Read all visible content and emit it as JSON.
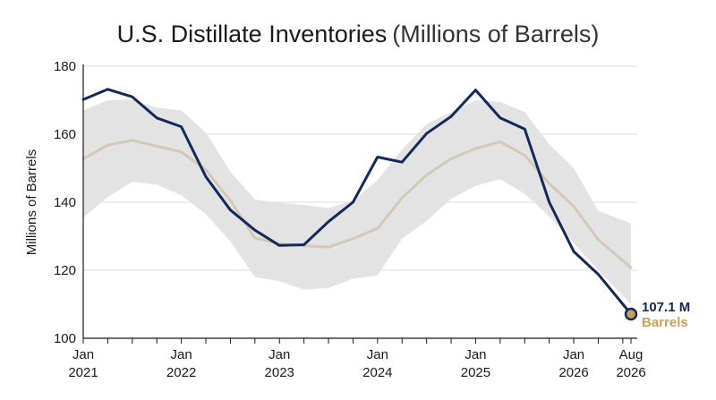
{
  "chart_data": {
    "type": "line",
    "title": "U.S. Distillate Inventories",
    "subtitle": "(Millions of Barrels)",
    "xlabel": "",
    "ylabel": "Millions of Barrels",
    "ylim": [
      100,
      180
    ],
    "yticks": [
      "100",
      "120",
      "140",
      "160",
      "180"
    ],
    "xticks": [
      {
        "month": "2021-01",
        "line1": "Jan",
        "line2": "2021"
      },
      {
        "month": "2022-01",
        "line1": "Jan",
        "line2": "2022"
      },
      {
        "month": "2023-01",
        "line1": "Jan",
        "line2": "2023"
      },
      {
        "month": "2024-01",
        "line1": "Jan",
        "line2": "2024"
      },
      {
        "month": "2025-01",
        "line1": "Jan",
        "line2": "2025"
      },
      {
        "month": "2026-01",
        "line1": "Jan",
        "line2": "2026"
      },
      {
        "month": "2026-08",
        "line1": "Aug",
        "line2": "2026"
      }
    ],
    "grid": true,
    "x": [
      "2021-01",
      "2021-04",
      "2021-07",
      "2021-10",
      "2022-01",
      "2022-04",
      "2022-07",
      "2022-10",
      "2023-01",
      "2023-04",
      "2023-07",
      "2023-10",
      "2024-01",
      "2024-04",
      "2024-07",
      "2024-10",
      "2025-01",
      "2025-04",
      "2025-07",
      "2025-10",
      "2026-01",
      "2026-04",
      "2026-08"
    ],
    "series": [
      {
        "role": "actual",
        "color": "#13295b",
        "values": [
          170.2,
          173.2,
          171.0,
          164.8,
          162.2,
          147.5,
          137.7,
          131.8,
          127.3,
          127.5,
          134.3,
          140.0,
          153.3,
          151.8,
          160.2,
          165.2,
          173.0,
          164.8,
          161.5,
          140.0,
          125.5,
          118.8,
          107.1
        ]
      },
      {
        "role": "average",
        "color": "#d4c9b7",
        "values": [
          152.8,
          156.8,
          158.2,
          156.5,
          154.8,
          149.5,
          140.5,
          129.5,
          127.8,
          127.2,
          126.8,
          129.3,
          132.3,
          141.3,
          148.0,
          152.8,
          155.8,
          157.8,
          153.8,
          145.5,
          138.8,
          129.0,
          120.8
        ]
      },
      {
        "role": "range-high",
        "color": "#e3e3e3",
        "values": [
          167.0,
          170.0,
          170.2,
          167.8,
          167.0,
          160.5,
          149.0,
          140.8,
          139.8,
          139.2,
          138.3,
          140.5,
          146.5,
          155.5,
          163.0,
          166.5,
          170.0,
          169.5,
          166.5,
          157.0,
          150.0,
          137.5,
          133.8
        ]
      },
      {
        "role": "range-low",
        "color": "#e3e3e3",
        "values": [
          135.5,
          141.5,
          146.0,
          145.2,
          142.0,
          136.5,
          128.5,
          118.0,
          116.8,
          114.3,
          114.8,
          117.5,
          118.5,
          129.3,
          134.5,
          141.0,
          144.8,
          146.8,
          142.5,
          135.8,
          128.0,
          120.0,
          110.0
        ]
      }
    ],
    "annotation": {
      "value_label": "107.1 M",
      "unit_label": "Barrels",
      "value_color": "#13295b",
      "unit_color": "#c9a15a"
    }
  }
}
